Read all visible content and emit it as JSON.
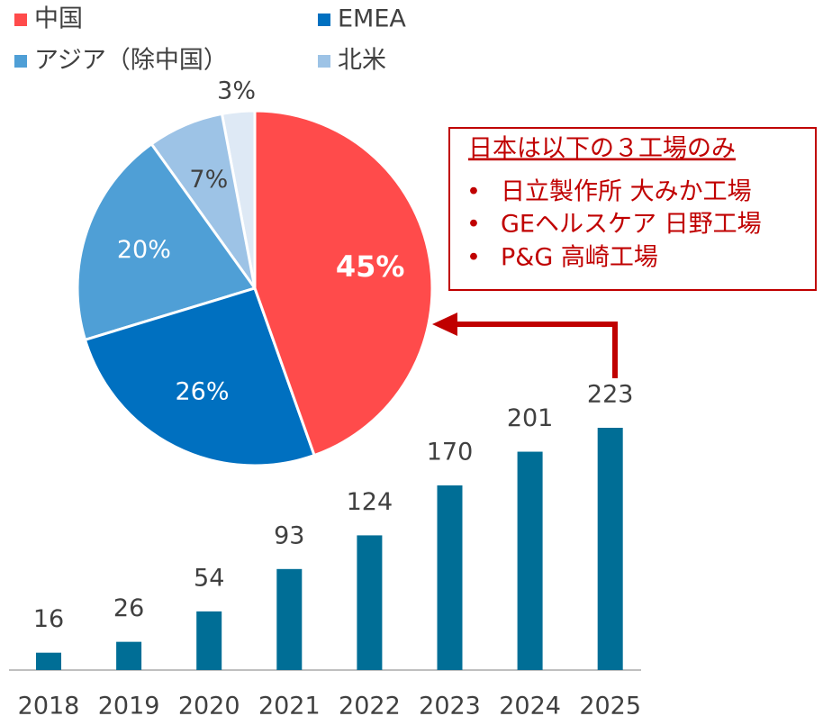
{
  "chart_data": [
    {
      "type": "pie",
      "categories": [
        "中国",
        "EMEA",
        "アジア（除中国）",
        "北米",
        null
      ],
      "values": [
        45,
        26,
        20,
        7,
        3
      ],
      "value_labels": [
        "45%",
        "26%",
        "20%",
        "7%",
        "3%"
      ],
      "colors": [
        "#ff4b4b",
        "#0070c0",
        "#4f9fd6",
        "#9dc3e6",
        "#dee9f5"
      ]
    },
    {
      "type": "bar",
      "categories": [
        "2018",
        "2019",
        "2020",
        "2021",
        "2022",
        "2023",
        "2024",
        "2025"
      ],
      "values": [
        16,
        26,
        54,
        93,
        124,
        170,
        201,
        223
      ],
      "color": "#006e96"
    }
  ],
  "annotation": {
    "title": "日本は以下の３工場のみ",
    "items": [
      "日立製作所 大みか工場",
      "GEヘルスケア 日野工場",
      "P&G 高崎工場"
    ]
  }
}
